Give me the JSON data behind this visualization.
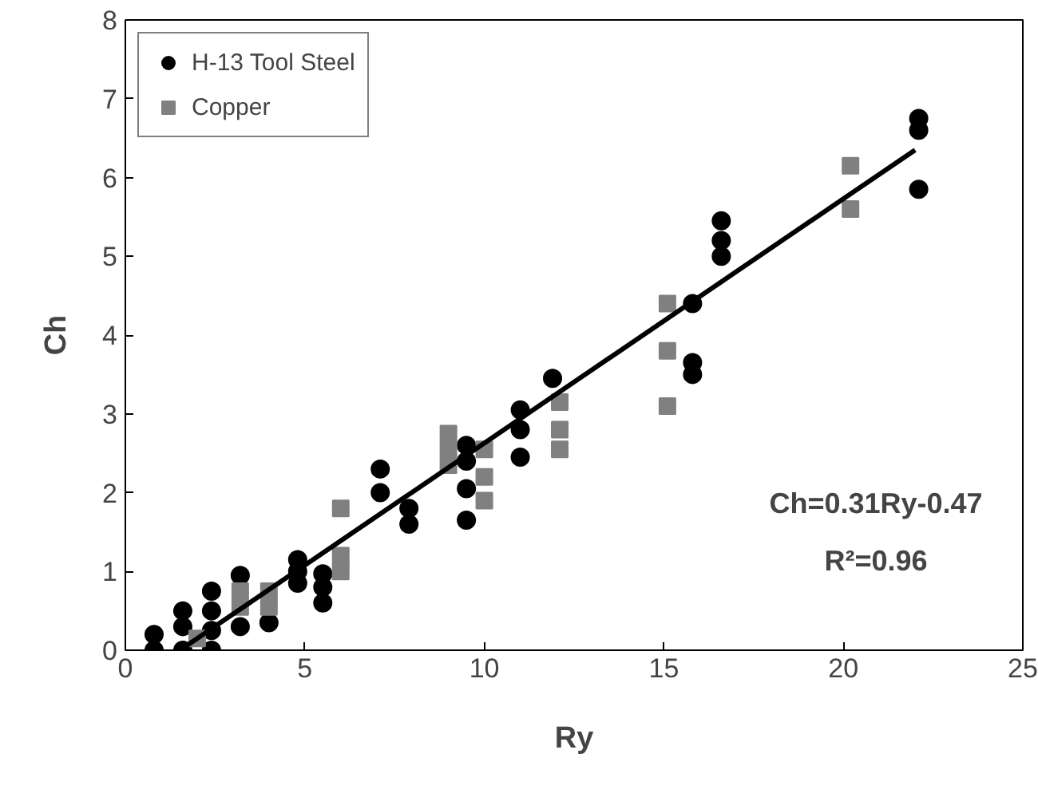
{
  "chart_data": {
    "type": "scatter",
    "xlabel": "Ry",
    "ylabel": "Ch",
    "xlim": [
      0,
      25
    ],
    "xticks": [
      0,
      5,
      10,
      15,
      20,
      25
    ],
    "ylim": [
      0,
      8
    ],
    "yticks": [
      0,
      1,
      2,
      3,
      4,
      5,
      6,
      7,
      8
    ],
    "grid": false,
    "legend": "top left",
    "annotations": [
      "Ch=0.31Ry-0.47",
      "R²=0.96"
    ],
    "series": [
      {
        "name": "H-13 Tool Steel",
        "color": "#000000",
        "marker": "circle",
        "x": [
          0.8,
          0.8,
          1.6,
          1.6,
          1.6,
          2.4,
          2.4,
          2.4,
          2.4,
          3.2,
          3.2,
          4.0,
          4.8,
          4.8,
          4.8,
          5.5,
          5.5,
          5.5,
          7.1,
          7.1,
          7.9,
          7.9,
          9.5,
          9.5,
          9.5,
          9.5,
          11,
          11,
          11,
          11.9,
          15.8,
          15.8,
          15.8,
          16.6,
          16.6,
          16.6,
          22.1,
          22.1,
          22.1
        ],
        "values": [
          0.0,
          0.2,
          0.0,
          0.3,
          0.5,
          0.0,
          0.25,
          0.5,
          0.75,
          0.3,
          0.95,
          0.35,
          0.85,
          1.0,
          1.15,
          0.6,
          0.8,
          0.97,
          2.0,
          2.3,
          1.6,
          1.8,
          1.65,
          2.05,
          2.4,
          2.6,
          2.45,
          2.8,
          3.05,
          3.45,
          3.5,
          3.65,
          4.4,
          5.0,
          5.2,
          5.45,
          5.85,
          6.6,
          6.75
        ]
      },
      {
        "name": "Copper",
        "color": "#808080",
        "marker": "square",
        "x": [
          2.0,
          3.2,
          3.2,
          4.0,
          4.0,
          6.0,
          6.0,
          6.0,
          9.0,
          9.0,
          9.0,
          10,
          10,
          10,
          12.1,
          12.1,
          12.1,
          15.1,
          15.1,
          15.1,
          20.2,
          20.2
        ],
        "values": [
          0.15,
          0.55,
          0.75,
          0.55,
          0.75,
          1.0,
          1.2,
          1.8,
          2.35,
          2.55,
          2.75,
          1.9,
          2.2,
          2.55,
          2.55,
          2.8,
          3.15,
          3.1,
          3.8,
          4.4,
          5.6,
          6.15
        ]
      },
      {
        "type": "line",
        "color": "#000000",
        "marker": "none",
        "line_style": "solid",
        "x": [
          1.52,
          22
        ],
        "values": [
          0.0,
          6.35
        ]
      }
    ]
  }
}
